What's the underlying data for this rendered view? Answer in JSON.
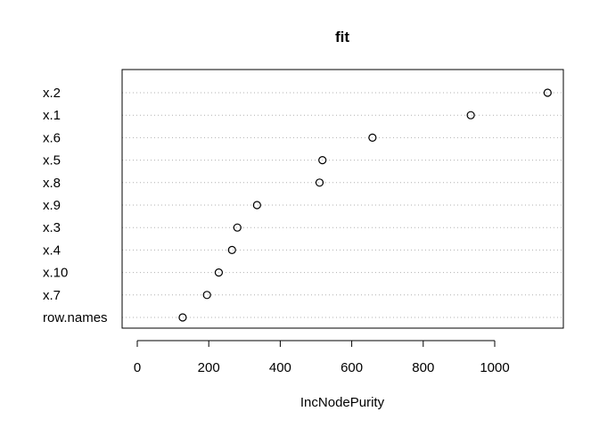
{
  "chart_data": {
    "type": "scatter",
    "title": "fit",
    "xlabel": "IncNodePurity",
    "ylabel": "",
    "categories": [
      "x.2",
      "x.1",
      "x.6",
      "x.5",
      "x.8",
      "x.9",
      "x.3",
      "x.4",
      "x.10",
      "x.7",
      "row.names"
    ],
    "values": [
      1148,
      933,
      658,
      518,
      510,
      335,
      280,
      265,
      228,
      195,
      127
    ],
    "xlim": [
      0,
      1150
    ],
    "xticks": [
      0,
      200,
      400,
      600,
      800,
      1000
    ],
    "grid": "dotted horizontal guide lines per row"
  }
}
